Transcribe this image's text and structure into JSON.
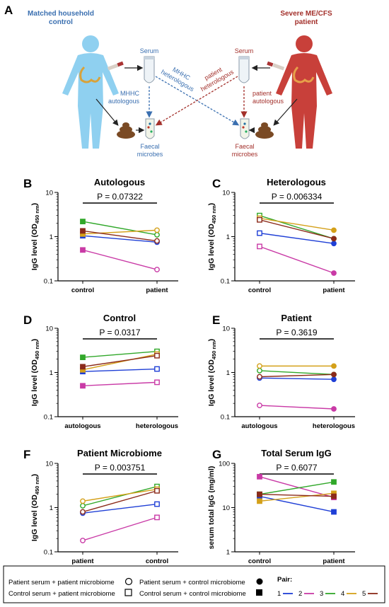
{
  "figure": {
    "schematic": {
      "letter": "A",
      "control_title_1": "Matched household",
      "control_title_2": "control",
      "patient_title_1": "Severe ME/CFS",
      "patient_title_2": "patient",
      "serum_left": "Serum",
      "serum_right": "Serum",
      "microbes_left_1": "Faecal",
      "microbes_left_2": "microbes",
      "microbes_right_1": "Faecal",
      "microbes_right_2": "microbes",
      "mhhc_autologous_1": "MHHC",
      "mhhc_autologous_2": "autologous",
      "mhhc_heterologous_1": "MHHC",
      "mhhc_heterologous_2": "heterologous",
      "patient_heterologous_1": "patient",
      "patient_heterologous_2": "heterologous",
      "patient_autologous_1": "patient",
      "patient_autologous_2": "autologous",
      "colors": {
        "control": "#3a6fb0",
        "patient": "#a3302b",
        "body_control": "#8fd0f0",
        "body_patient": "#c8403a"
      }
    },
    "legend": {
      "entries": [
        {
          "label": "Patient serum + patient microbiome",
          "marker": "open-circle"
        },
        {
          "label": "Control serum + patient microbiome",
          "marker": "open-square"
        },
        {
          "label": "Patient serum + control microbiome",
          "marker": "filled-circle"
        },
        {
          "label": "Control serum + control microbiome",
          "marker": "filled-square"
        }
      ],
      "pair_title": "Pair:",
      "pairs": [
        "1",
        "2",
        "3",
        "4",
        "5"
      ]
    },
    "pair_colors": [
      "#1f3fd6",
      "#c93aa6",
      "#31a82a",
      "#d4a019",
      "#8b2a1a"
    ]
  },
  "chart_data": [
    {
      "type": "line",
      "letter": "B",
      "title": "Autologous",
      "p_value": "P = 0.07322",
      "ylabel": "IgG level (OD",
      "ylabel_sub": "450 nm",
      "ylabel_end": ")",
      "yscale": "log",
      "ylim": [
        0.1,
        10
      ],
      "yticks": [
        "10",
        "1",
        "0.1"
      ],
      "categories": [
        "control",
        "patient"
      ],
      "markers": [
        "filled-square",
        "open-circle"
      ],
      "series": [
        {
          "pair": 1,
          "values": [
            1.05,
            0.75
          ]
        },
        {
          "pair": 2,
          "values": [
            0.5,
            0.18
          ]
        },
        {
          "pair": 3,
          "values": [
            2.2,
            1.1
          ]
        },
        {
          "pair": 4,
          "values": [
            1.15,
            1.4
          ]
        },
        {
          "pair": 5,
          "values": [
            1.35,
            0.8
          ]
        }
      ]
    },
    {
      "type": "line",
      "letter": "C",
      "title": "Heterologous",
      "p_value": "P = 0.006334",
      "ylabel": "IgG level (OD",
      "ylabel_sub": "450 nm",
      "ylabel_end": ")",
      "yscale": "log",
      "ylim": [
        0.1,
        10
      ],
      "yticks": [
        "10",
        "1",
        "0.1"
      ],
      "categories": [
        "control",
        "patient"
      ],
      "markers": [
        "open-square",
        "filled-circle"
      ],
      "series": [
        {
          "pair": 1,
          "values": [
            1.2,
            0.7
          ]
        },
        {
          "pair": 2,
          "values": [
            0.6,
            0.15
          ]
        },
        {
          "pair": 3,
          "values": [
            3.0,
            0.9
          ]
        },
        {
          "pair": 4,
          "values": [
            2.6,
            1.4
          ]
        },
        {
          "pair": 5,
          "values": [
            2.4,
            0.9
          ]
        }
      ]
    },
    {
      "type": "line",
      "letter": "D",
      "title": "Control",
      "p_value": "P = 0.0317",
      "ylabel": "IgG level (OD",
      "ylabel_sub": "450 nm",
      "ylabel_end": ")",
      "yscale": "log",
      "ylim": [
        0.1,
        10
      ],
      "yticks": [
        "10",
        "1",
        "0.1"
      ],
      "categories": [
        "autologous",
        "heterologous"
      ],
      "markers": [
        "filled-square",
        "open-square"
      ],
      "series": [
        {
          "pair": 1,
          "values": [
            1.05,
            1.2
          ]
        },
        {
          "pair": 2,
          "values": [
            0.5,
            0.6
          ]
        },
        {
          "pair": 3,
          "values": [
            2.2,
            3.0
          ]
        },
        {
          "pair": 4,
          "values": [
            1.15,
            2.6
          ]
        },
        {
          "pair": 5,
          "values": [
            1.35,
            2.4
          ]
        }
      ]
    },
    {
      "type": "line",
      "letter": "E",
      "title": "Patient",
      "p_value": "P = 0.3619",
      "ylabel": "IgG level (OD",
      "ylabel_sub": "450 nm",
      "ylabel_end": ")",
      "yscale": "log",
      "ylim": [
        0.1,
        10
      ],
      "yticks": [
        "10",
        "1",
        "0.1"
      ],
      "categories": [
        "autologous",
        "heterologous"
      ],
      "markers": [
        "open-circle",
        "filled-circle"
      ],
      "series": [
        {
          "pair": 1,
          "values": [
            0.75,
            0.7
          ]
        },
        {
          "pair": 2,
          "values": [
            0.18,
            0.15
          ]
        },
        {
          "pair": 3,
          "values": [
            1.1,
            0.9
          ]
        },
        {
          "pair": 4,
          "values": [
            1.4,
            1.4
          ]
        },
        {
          "pair": 5,
          "values": [
            0.8,
            0.9
          ]
        }
      ]
    },
    {
      "type": "line",
      "letter": "F",
      "title": "Patient Microbiome",
      "p_value": "P = 0.003751",
      "ylabel": "IgG level (OD",
      "ylabel_sub": "450 nm",
      "ylabel_end": ")",
      "yscale": "log",
      "ylim": [
        0.1,
        10
      ],
      "yticks": [
        "10",
        "1",
        "0.1"
      ],
      "categories": [
        "patient",
        "control"
      ],
      "markers": [
        "open-circle",
        "open-square"
      ],
      "series": [
        {
          "pair": 1,
          "values": [
            0.75,
            1.2
          ]
        },
        {
          "pair": 2,
          "values": [
            0.18,
            0.6
          ]
        },
        {
          "pair": 3,
          "values": [
            1.1,
            3.0
          ]
        },
        {
          "pair": 4,
          "values": [
            1.4,
            2.6
          ]
        },
        {
          "pair": 5,
          "values": [
            0.8,
            2.4
          ]
        }
      ]
    },
    {
      "type": "line",
      "letter": "G",
      "title": "Total Serum IgG",
      "p_value": "P = 0.6077",
      "ylabel": "serum total IgG (mg/ml)",
      "ylabel_sub": "",
      "ylabel_end": "",
      "yscale": "log",
      "ylim": [
        1,
        100
      ],
      "yticks": [
        "100",
        "10",
        "1"
      ],
      "categories": [
        "control",
        "patient"
      ],
      "markers": [
        "filled-square",
        "filled-square"
      ],
      "series": [
        {
          "pair": 1,
          "values": [
            18,
            8
          ]
        },
        {
          "pair": 2,
          "values": [
            50,
            17
          ]
        },
        {
          "pair": 3,
          "values": [
            20,
            38
          ]
        },
        {
          "pair": 4,
          "values": [
            14,
            21
          ]
        },
        {
          "pair": 5,
          "values": [
            20,
            18
          ]
        }
      ]
    }
  ]
}
